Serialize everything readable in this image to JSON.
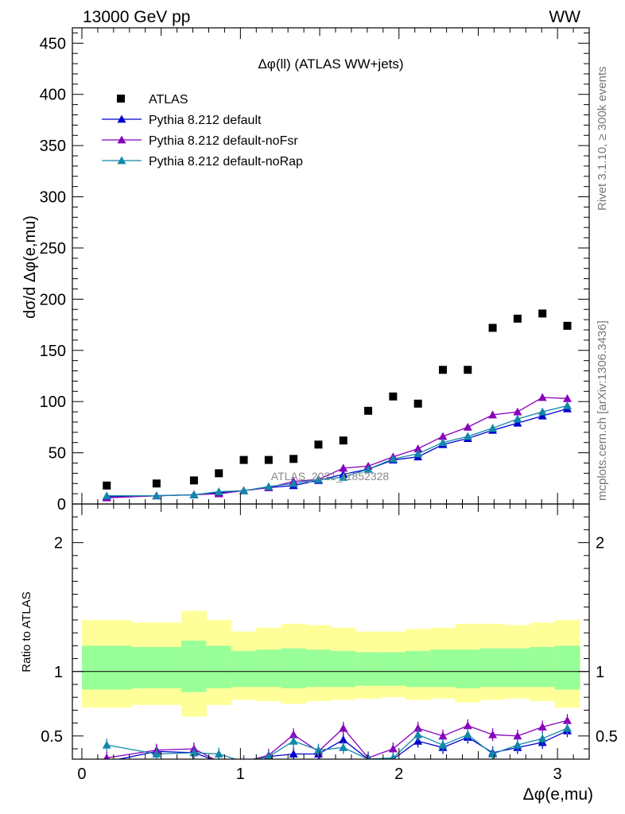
{
  "header": {
    "left": "13000 GeV pp",
    "right": "WW"
  },
  "side_labels": {
    "rivet": "Rivet 3.1.10, ≥ 300k events",
    "mcplots": "mcplots.cern.ch [arXiv:1306.3436]"
  },
  "chart_data": [
    {
      "type": "scatter",
      "title": "Δφ(ll) (ATLAS WW+jets)",
      "ylabel": "dσ/d Δφ(e,mu)",
      "xlabel": "Δφ(e,mu)",
      "watermark": "ATLAS_2021_I1852328",
      "xlim": [
        -0.06,
        3.2
      ],
      "ylim": [
        0,
        465
      ],
      "yticks": [
        0,
        50,
        100,
        150,
        200,
        250,
        300,
        350,
        400,
        450
      ],
      "xticks": [
        0,
        1,
        2,
        3
      ],
      "legend_position": "top-left",
      "x": [
        0.157,
        0.471,
        0.707,
        0.864,
        1.021,
        1.178,
        1.335,
        1.492,
        1.649,
        1.806,
        1.963,
        2.12,
        2.277,
        2.434,
        2.591,
        2.748,
        2.905,
        3.062
      ],
      "series": [
        {
          "name": "ATLAS",
          "color": "#000000",
          "marker": "square",
          "values": [
            18,
            20,
            23,
            30,
            43,
            43,
            44,
            58,
            62,
            91,
            105,
            98,
            131,
            131,
            172,
            181,
            186,
            174
          ]
        },
        {
          "name": "Pythia 8.212 default",
          "color": "#0000cc",
          "marker": "triangle",
          "values": [
            7,
            8,
            9,
            11,
            13,
            16,
            18,
            23,
            29,
            34,
            43,
            46,
            58,
            64,
            72,
            79,
            86,
            93
          ]
        },
        {
          "name": "Pythia 8.212 default-noFsr",
          "color": "#8800bb",
          "marker": "triangle",
          "values": [
            6,
            8,
            9,
            10,
            13,
            16,
            22,
            24,
            35,
            37,
            46,
            54,
            66,
            75,
            87,
            90,
            104,
            103
          ]
        },
        {
          "name": "Pythia 8.212 default-noRap",
          "color": "#1188aa",
          "marker": "triangle",
          "values": [
            8,
            8,
            9,
            12,
            13,
            17,
            20,
            24,
            26,
            34,
            44,
            49,
            60,
            66,
            74,
            83,
            90,
            96
          ]
        }
      ]
    },
    {
      "type": "line",
      "ylabel": "Ratio to ATLAS",
      "ylim": [
        0.32,
        2.3
      ],
      "yticks": [
        0.5,
        1,
        2
      ],
      "xticks": [
        0,
        1,
        2,
        3
      ],
      "band_colors": {
        "inner": "#99ff99",
        "outer": "#ffff99"
      },
      "bins": [
        0.0,
        0.314,
        0.628,
        0.785,
        0.942,
        1.099,
        1.256,
        1.413,
        1.57,
        1.727,
        1.884,
        2.041,
        2.198,
        2.355,
        2.512,
        2.669,
        2.826,
        2.983,
        3.14
      ],
      "band_inner_lo": [
        0.86,
        0.87,
        0.84,
        0.87,
        0.88,
        0.88,
        0.87,
        0.88,
        0.88,
        0.89,
        0.89,
        0.88,
        0.88,
        0.87,
        0.88,
        0.88,
        0.88,
        0.86
      ],
      "band_inner_hi": [
        1.2,
        1.19,
        1.24,
        1.2,
        1.16,
        1.17,
        1.18,
        1.17,
        1.16,
        1.15,
        1.15,
        1.16,
        1.17,
        1.17,
        1.18,
        1.18,
        1.19,
        1.2
      ],
      "band_outer_lo": [
        0.72,
        0.74,
        0.65,
        0.74,
        0.78,
        0.77,
        0.75,
        0.77,
        0.78,
        0.79,
        0.8,
        0.78,
        0.79,
        0.76,
        0.78,
        0.79,
        0.77,
        0.72
      ],
      "band_outer_hi": [
        1.4,
        1.38,
        1.47,
        1.4,
        1.31,
        1.34,
        1.37,
        1.36,
        1.34,
        1.31,
        1.31,
        1.33,
        1.34,
        1.37,
        1.37,
        1.36,
        1.38,
        1.4
      ],
      "x": [
        0.157,
        0.471,
        0.707,
        0.864,
        1.021,
        1.178,
        1.335,
        1.492,
        1.649,
        1.806,
        1.963,
        2.12,
        2.277,
        2.434,
        2.591,
        2.748,
        2.905,
        3.062
      ],
      "series": [
        {
          "name": "Pythia 8.212 default",
          "color": "#0000cc",
          "values": [
            0.3,
            0.38,
            0.37,
            0.3,
            0.3,
            0.34,
            0.36,
            0.36,
            0.47,
            0.32,
            0.32,
            0.46,
            0.41,
            0.49,
            0.37,
            0.41,
            0.45,
            0.54
          ]
        },
        {
          "name": "Pythia 8.212 default-noFsr",
          "color": "#8800bb",
          "values": [
            0.33,
            0.39,
            0.4,
            0.3,
            0.3,
            0.35,
            0.51,
            0.38,
            0.56,
            0.33,
            0.4,
            0.56,
            0.5,
            0.58,
            0.51,
            0.5,
            0.57,
            0.62
          ]
        },
        {
          "name": "Pythia 8.212 default-noRap",
          "color": "#1188aa",
          "values": [
            0.43,
            0.36,
            0.37,
            0.36,
            0.3,
            0.34,
            0.46,
            0.39,
            0.41,
            0.32,
            0.33,
            0.51,
            0.43,
            0.51,
            0.36,
            0.43,
            0.48,
            0.56
          ]
        }
      ]
    }
  ]
}
